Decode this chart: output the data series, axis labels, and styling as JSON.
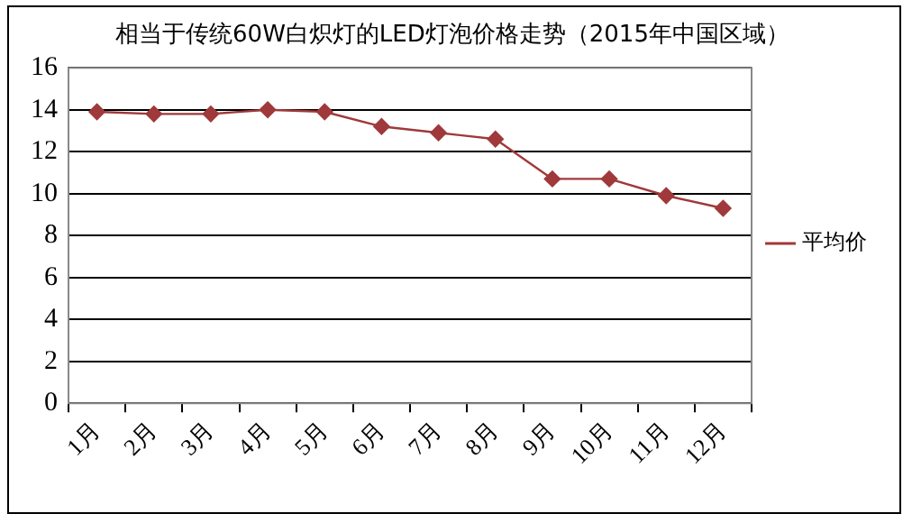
{
  "chart_data": {
    "type": "line",
    "title": "相当于传统60W白炽灯的LED灯泡价格走势（2015年中国区域）",
    "categories": [
      "1月",
      "2月",
      "3月",
      "4月",
      "5月",
      "6月",
      "7月",
      "8月",
      "9月",
      "10月",
      "11月",
      "12月"
    ],
    "series": [
      {
        "name": "平均价",
        "color": "#a0393b",
        "values": [
          13.9,
          13.8,
          13.8,
          14.0,
          13.9,
          13.2,
          12.9,
          12.6,
          10.7,
          10.7,
          9.9,
          9.3
        ]
      }
    ],
    "ylim": [
      0,
      16
    ],
    "yticks": [
      0,
      2,
      4,
      6,
      8,
      10,
      12,
      14,
      16
    ],
    "grid": "y",
    "legend": "right",
    "marker": "diamond",
    "line_style": "solid"
  }
}
